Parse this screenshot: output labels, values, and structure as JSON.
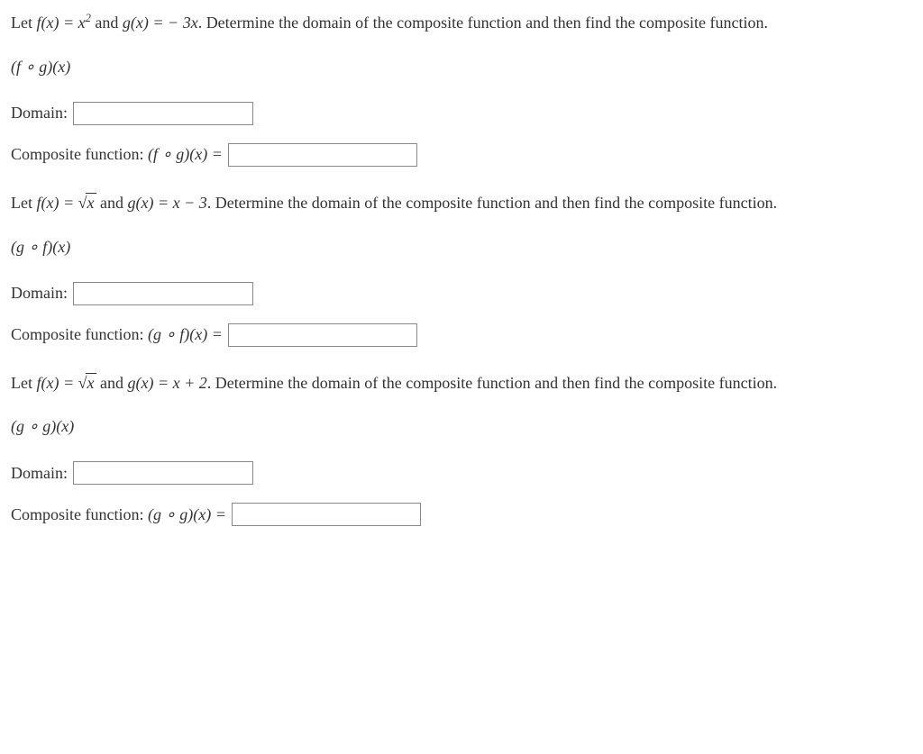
{
  "problems": [
    {
      "prompt_prefix": "Let ",
      "f_def_lhs": "f(x) = x",
      "f_def_sup": "2",
      "conjunction": " and ",
      "g_def": "g(x) =  − 3x",
      "prompt_suffix": ". Determine the domain of the composite function and then find the composite function.",
      "composition_notation": "(f ∘ g)(x)",
      "domain_label": "Domain:",
      "composite_label_pre": "Composite function: ",
      "composite_expr": "(f ∘ g)(x) =",
      "use_sqrt": false
    },
    {
      "prompt_prefix": "Let ",
      "f_def_sqrt": "f(x) = ",
      "sqrt_var": "x",
      "conjunction": " and ",
      "g_def": "g(x) = x − 3",
      "prompt_suffix": ". Determine the domain of the composite function and then find the composite function.",
      "composition_notation": "(g ∘ f)(x)",
      "domain_label": "Domain:",
      "composite_label_pre": "Composite function: ",
      "composite_expr": "(g ∘ f)(x) =",
      "use_sqrt": true
    },
    {
      "prompt_prefix": "Let ",
      "f_def_sqrt": "f(x) = ",
      "sqrt_var": "x",
      "conjunction": " and ",
      "g_def": "g(x) = x + 2",
      "prompt_suffix": ". Determine the domain of the composite function and then find the composite function.",
      "composition_notation": "(g ∘ g)(x)",
      "domain_label": "Domain:",
      "composite_label_pre": "Composite function: ",
      "composite_expr": "(g ∘ g)(x) =",
      "use_sqrt": true
    }
  ],
  "styling": {
    "text_color": "#333333",
    "background_color": "#ffffff",
    "input_border_color": "#888888",
    "body_font_size": 18,
    "body_font_family": "serif"
  }
}
